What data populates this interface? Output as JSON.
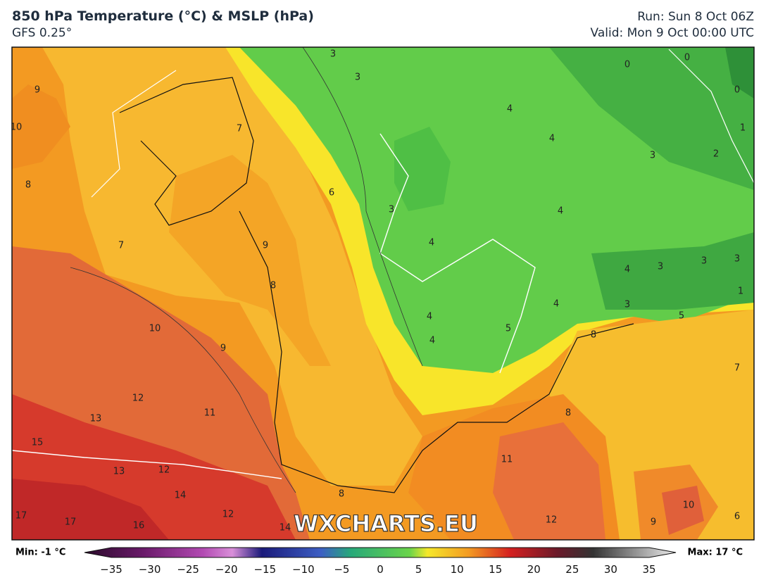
{
  "header": {
    "title": "850 hPa Temperature (°C) & MSLP (hPa)",
    "subtitle": "GFS 0.25°",
    "run": "Run: Sun 8 Oct 06Z",
    "valid": "Valid: Mon 9 Oct 00:00 UTC"
  },
  "map": {
    "watermark": "WXCHARTS.EU",
    "contour_labels": [
      "9",
      "10",
      "8",
      "7",
      "9",
      "8",
      "10",
      "9",
      "12",
      "11",
      "13",
      "15",
      "13",
      "12",
      "14",
      "16",
      "17",
      "7",
      "6",
      "3",
      "4",
      "4",
      "4",
      "4",
      "3",
      "2",
      "1",
      "0",
      "0",
      "0",
      "3",
      "3",
      "4",
      "4",
      "5",
      "8",
      "8",
      "11",
      "12",
      "10",
      "9",
      "6",
      "7",
      "8",
      "12",
      "4",
      "3",
      "3",
      "3",
      "1",
      "3",
      "5",
      "4",
      "14",
      "17"
    ]
  },
  "colorbar": {
    "min_label": "Min: -1 °C",
    "max_label": "Max: 17 °C",
    "ticks": [
      "−35",
      "−30",
      "−25",
      "−20",
      "−15",
      "−10",
      "−5",
      "0",
      "5",
      "10",
      "15",
      "20",
      "25",
      "30",
      "35"
    ]
  }
}
